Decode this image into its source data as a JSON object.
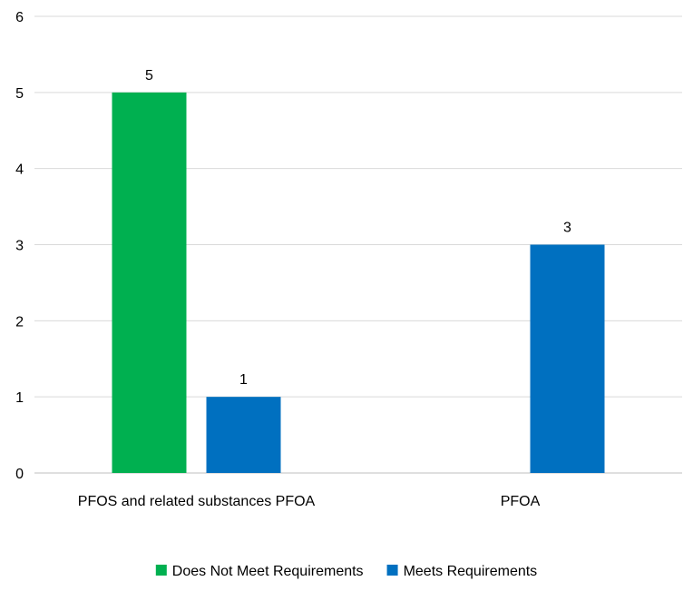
{
  "chart_data": {
    "type": "bar",
    "categories": [
      "PFOS and related substances PFOA",
      "PFOA"
    ],
    "series": [
      {
        "name": "Does Not Meet Requirements",
        "color": "#00b050",
        "values": [
          5,
          null
        ]
      },
      {
        "name": "Meets Requirements",
        "color": "#0070c0",
        "values": [
          1,
          3
        ]
      }
    ],
    "data_labels": [
      [
        "5",
        ""
      ],
      [
        "1",
        "3"
      ]
    ],
    "y_ticks": [
      "0",
      "1",
      "2",
      "3",
      "4",
      "5",
      "6"
    ],
    "ylim": [
      0,
      6
    ],
    "grid": true,
    "legend": "bottom",
    "title": "",
    "xlabel": "",
    "ylabel": ""
  }
}
